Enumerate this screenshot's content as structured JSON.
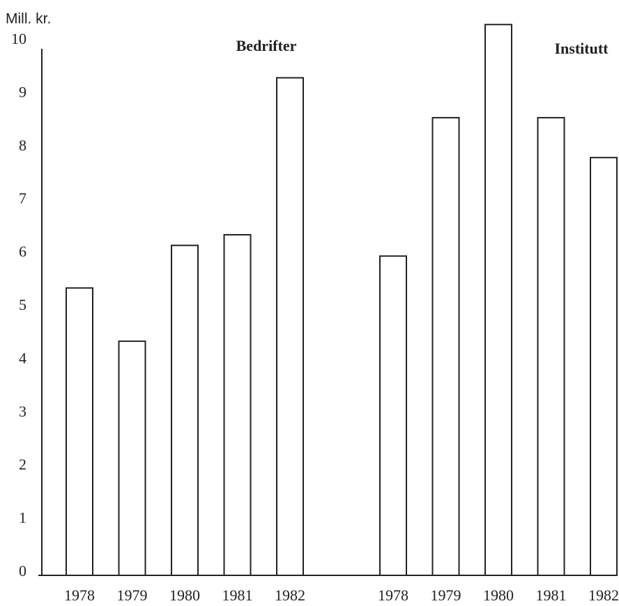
{
  "chart_data": {
    "type": "bar",
    "y_label": "Mill. kr.",
    "groups": [
      {
        "name": "Bedrifter",
        "categories": [
          "1978",
          "1979",
          "1980",
          "1981",
          "1982"
        ],
        "values": [
          5.4,
          4.4,
          6.2,
          6.4,
          9.35
        ]
      },
      {
        "name": "Institutt",
        "categories": [
          "1978",
          "1979",
          "1980",
          "1981",
          "1982"
        ],
        "values": [
          6.0,
          8.6,
          10.35,
          8.6,
          7.85
        ]
      }
    ],
    "color": "#ffffff",
    "ylim": [
      0,
      10.5
    ],
    "yticks": [
      0,
      1,
      2,
      3,
      4,
      5,
      6,
      7,
      8,
      9,
      10
    ],
    "grid": false
  }
}
